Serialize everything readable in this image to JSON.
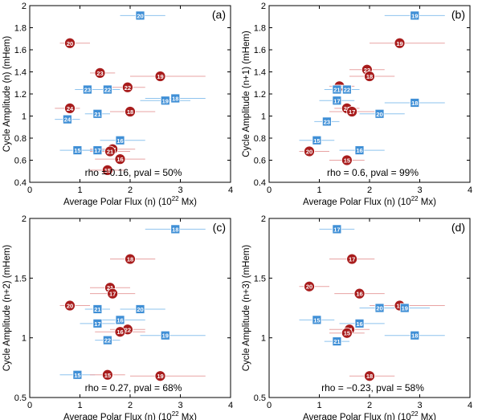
{
  "figure": {
    "marker_colors": {
      "blue": "#3f8fd6",
      "red": "#a81c1c",
      "blue_err": "#8ec3ee",
      "red_err": "#e8a3a3"
    }
  },
  "chart_data": [
    {
      "type": "scatter",
      "panel_label": "(a)",
      "xlabel": "Average Polar Flux (n) (10",
      "xlabel_sup": "22",
      "xlabel_tail": " Mx)",
      "ylabel": "Cycle Amplitude (n) (mHem)",
      "xlim": [
        0,
        4
      ],
      "ylim": [
        0.4,
        2.0
      ],
      "xticks": [
        0,
        1,
        2,
        3,
        4
      ],
      "xtick_labels": [
        "0",
        "1",
        "2",
        "3",
        "4"
      ],
      "yticks": [
        0.4,
        0.6,
        0.8,
        1.0,
        1.2,
        1.4,
        1.6,
        1.8,
        2.0
      ],
      "ytick_labels": [
        "0.4",
        "0.6",
        "0.8",
        "1",
        "1.2",
        "1.4",
        "1.6",
        "1.8",
        "2"
      ],
      "annotation": "rho = 0.16, pval = 50%",
      "points": [
        {
          "label": "20",
          "kind": "square",
          "x": 2.2,
          "y": 1.91,
          "xerr": [
            1.8,
            2.7
          ]
        },
        {
          "label": "20",
          "kind": "circle",
          "x": 0.8,
          "y": 1.66,
          "xerr": [
            0.6,
            1.2
          ]
        },
        {
          "label": "23",
          "kind": "circle",
          "x": 1.4,
          "y": 1.39,
          "xerr": [
            1.2,
            1.7
          ]
        },
        {
          "label": "19",
          "kind": "circle",
          "x": 2.6,
          "y": 1.36,
          "xerr": [
            2.0,
            3.5
          ]
        },
        {
          "label": "22",
          "kind": "circle",
          "x": 1.95,
          "y": 1.26,
          "xerr": [
            1.6,
            2.3
          ]
        },
        {
          "label": "23",
          "kind": "square",
          "x": 1.15,
          "y": 1.24,
          "xerr": [
            0.9,
            1.4
          ]
        },
        {
          "label": "22",
          "kind": "square",
          "x": 1.55,
          "y": 1.24,
          "xerr": [
            1.3,
            1.8
          ]
        },
        {
          "label": "18",
          "kind": "square",
          "x": 2.9,
          "y": 1.16,
          "xerr": [
            2.3,
            3.5
          ]
        },
        {
          "label": "19",
          "kind": "square",
          "x": 2.7,
          "y": 1.14,
          "xerr": [
            2.2,
            3.2
          ]
        },
        {
          "label": "24",
          "kind": "circle",
          "x": 0.8,
          "y": 1.07,
          "xerr": [
            0.5,
            1.0
          ]
        },
        {
          "label": "18",
          "kind": "circle",
          "x": 2.0,
          "y": 1.04,
          "xerr": [
            1.6,
            2.5
          ]
        },
        {
          "label": "21",
          "kind": "square",
          "x": 1.35,
          "y": 1.02,
          "xerr": [
            1.1,
            1.6
          ]
        },
        {
          "label": "24",
          "kind": "square",
          "x": 0.75,
          "y": 0.97,
          "xerr": [
            0.5,
            1.0
          ]
        },
        {
          "label": "16",
          "kind": "square",
          "x": 1.8,
          "y": 0.78,
          "xerr": [
            1.4,
            2.3
          ]
        },
        {
          "label": "15",
          "kind": "square",
          "x": 0.95,
          "y": 0.69,
          "xerr": [
            0.6,
            1.3
          ]
        },
        {
          "label": "17",
          "kind": "square",
          "x": 1.35,
          "y": 0.69,
          "xerr": [
            1.0,
            1.7
          ]
        },
        {
          "label": "17",
          "kind": "circle",
          "x": 1.65,
          "y": 0.7,
          "xerr": [
            1.2,
            2.1
          ]
        },
        {
          "label": "21",
          "kind": "circle",
          "x": 1.6,
          "y": 0.68,
          "xerr": [
            1.2,
            2.0
          ]
        },
        {
          "label": "16",
          "kind": "circle",
          "x": 1.8,
          "y": 0.61,
          "xerr": [
            1.3,
            2.3
          ]
        },
        {
          "label": "15",
          "kind": "circle",
          "x": 1.55,
          "y": 0.51,
          "xerr": [
            1.2,
            1.9
          ]
        }
      ]
    },
    {
      "type": "scatter",
      "panel_label": "(b)",
      "xlabel": "Average Polar Flux (n) (10",
      "xlabel_sup": "22",
      "xlabel_tail": " Mx)",
      "ylabel": "Cycle Amplitude (n+1) (mHem)",
      "xlim": [
        0,
        4
      ],
      "ylim": [
        0.4,
        2.0
      ],
      "xticks": [
        0,
        1,
        2,
        3,
        4
      ],
      "xtick_labels": [
        "0",
        "1",
        "2",
        "3",
        "4"
      ],
      "yticks": [
        0.4,
        0.6,
        0.8,
        1.0,
        1.2,
        1.4,
        1.6,
        1.8,
        2.0
      ],
      "ytick_labels": [
        "0.4",
        "0.6",
        "0.8",
        "1",
        "1.2",
        "1.4",
        "1.6",
        "1.8",
        "2"
      ],
      "annotation": "rho = 0.6, pval = 99%",
      "points": [
        {
          "label": "19",
          "kind": "square",
          "x": 2.9,
          "y": 1.91,
          "xerr": [
            2.3,
            3.5
          ]
        },
        {
          "label": "19",
          "kind": "circle",
          "x": 2.6,
          "y": 1.66,
          "xerr": [
            2.0,
            3.5
          ]
        },
        {
          "label": "22",
          "kind": "circle",
          "x": 1.95,
          "y": 1.42,
          "xerr": [
            1.6,
            2.3
          ]
        },
        {
          "label": "18",
          "kind": "circle",
          "x": 2.0,
          "y": 1.36,
          "xerr": [
            1.6,
            2.5
          ]
        },
        {
          "label": "23",
          "kind": "circle",
          "x": 1.4,
          "y": 1.27,
          "xerr": [
            1.2,
            1.7
          ]
        },
        {
          "label": "21",
          "kind": "square",
          "x": 1.35,
          "y": 1.24,
          "xerr": [
            1.1,
            1.6
          ]
        },
        {
          "label": "22",
          "kind": "square",
          "x": 1.55,
          "y": 1.24,
          "xerr": [
            1.3,
            1.8
          ]
        },
        {
          "label": "17",
          "kind": "square",
          "x": 1.35,
          "y": 1.14,
          "xerr": [
            1.0,
            1.7
          ]
        },
        {
          "label": "18",
          "kind": "square",
          "x": 2.9,
          "y": 1.12,
          "xerr": [
            2.3,
            3.5
          ]
        },
        {
          "label": "23",
          "kind": "circle",
          "x": 1.55,
          "y": 1.07,
          "xerr": [
            1.3,
            1.8
          ]
        },
        {
          "label": "17",
          "kind": "circle",
          "x": 1.65,
          "y": 1.04,
          "xerr": [
            1.2,
            2.1
          ]
        },
        {
          "label": "20",
          "kind": "square",
          "x": 2.2,
          "y": 1.02,
          "xerr": [
            1.8,
            2.7
          ]
        },
        {
          "label": "23",
          "kind": "square",
          "x": 1.15,
          "y": 0.95,
          "xerr": [
            0.9,
            1.4
          ]
        },
        {
          "label": "15",
          "kind": "square",
          "x": 0.95,
          "y": 0.78,
          "xerr": [
            0.6,
            1.3
          ]
        },
        {
          "label": "20",
          "kind": "circle",
          "x": 0.8,
          "y": 0.68,
          "xerr": [
            0.6,
            1.2
          ]
        },
        {
          "label": "16",
          "kind": "square",
          "x": 1.8,
          "y": 0.69,
          "xerr": [
            1.4,
            2.3
          ]
        },
        {
          "label": "15",
          "kind": "circle",
          "x": 1.55,
          "y": 0.6,
          "xerr": [
            1.2,
            1.9
          ]
        }
      ]
    },
    {
      "type": "scatter",
      "panel_label": "(c)",
      "xlabel": "Average Polar Flux (n) (10",
      "xlabel_sup": "22",
      "xlabel_tail": " Mx)",
      "ylabel": "Cycle Amplitude (n+2) (mHem)",
      "xlim": [
        0,
        4
      ],
      "ylim": [
        0.5,
        2.0
      ],
      "xticks": [
        0,
        1,
        2,
        3,
        4
      ],
      "xtick_labels": [
        "0",
        "1",
        "2",
        "3",
        "4"
      ],
      "yticks": [
        0.5,
        1.0,
        1.5,
        2.0
      ],
      "ytick_labels": [
        "0.5",
        "1",
        "1.5",
        "2"
      ],
      "annotation": "rho = 0.27, pval = 68%",
      "points": [
        {
          "label": "18",
          "kind": "square",
          "x": 2.9,
          "y": 1.91,
          "xerr": [
            2.3,
            3.5
          ]
        },
        {
          "label": "18",
          "kind": "circle",
          "x": 2.0,
          "y": 1.66,
          "xerr": [
            1.6,
            2.5
          ]
        },
        {
          "label": "21",
          "kind": "circle",
          "x": 1.6,
          "y": 1.42,
          "xerr": [
            1.2,
            2.0
          ]
        },
        {
          "label": "17",
          "kind": "circle",
          "x": 1.65,
          "y": 1.37,
          "xerr": [
            1.2,
            2.1
          ]
        },
        {
          "label": "20",
          "kind": "circle",
          "x": 0.8,
          "y": 1.27,
          "xerr": [
            0.6,
            1.2
          ]
        },
        {
          "label": "21",
          "kind": "square",
          "x": 1.35,
          "y": 1.24,
          "xerr": [
            1.1,
            1.6
          ]
        },
        {
          "label": "20",
          "kind": "square",
          "x": 2.2,
          "y": 1.24,
          "xerr": [
            1.8,
            2.7
          ]
        },
        {
          "label": "16",
          "kind": "square",
          "x": 1.8,
          "y": 1.15,
          "xerr": [
            1.4,
            2.3
          ]
        },
        {
          "label": "17",
          "kind": "square",
          "x": 1.35,
          "y": 1.12,
          "xerr": [
            1.0,
            1.7
          ]
        },
        {
          "label": "22",
          "kind": "circle",
          "x": 1.95,
          "y": 1.07,
          "xerr": [
            1.6,
            2.3
          ]
        },
        {
          "label": "16",
          "kind": "circle",
          "x": 1.8,
          "y": 1.05,
          "xerr": [
            1.3,
            2.3
          ]
        },
        {
          "label": "19",
          "kind": "square",
          "x": 2.7,
          "y": 1.02,
          "xerr": [
            2.2,
            3.5
          ]
        },
        {
          "label": "22",
          "kind": "square",
          "x": 1.55,
          "y": 0.98,
          "xerr": [
            1.3,
            1.8
          ]
        },
        {
          "label": "15",
          "kind": "square",
          "x": 0.95,
          "y": 0.69,
          "xerr": [
            0.6,
            1.3
          ]
        },
        {
          "label": "15",
          "kind": "circle",
          "x": 1.55,
          "y": 0.69,
          "xerr": [
            1.2,
            1.9
          ]
        },
        {
          "label": "19",
          "kind": "circle",
          "x": 2.6,
          "y": 0.68,
          "xerr": [
            2.0,
            3.5
          ]
        }
      ]
    },
    {
      "type": "scatter",
      "panel_label": "(d)",
      "xlabel": "Average Polar Flux (n) (10",
      "xlabel_sup": "22",
      "xlabel_tail": " Mx)",
      "ylabel": "Cycle Amplitude (n+3) (mHem)",
      "xlim": [
        0,
        4
      ],
      "ylim": [
        0.5,
        2.0
      ],
      "xticks": [
        0,
        1,
        2,
        3,
        4
      ],
      "xtick_labels": [
        "0",
        "1",
        "2",
        "3",
        "4"
      ],
      "yticks": [
        0.5,
        1.0,
        1.5,
        2.0
      ],
      "ytick_labels": [
        "0.5",
        "1",
        "1.5",
        "2"
      ],
      "annotation": "rho = −0.23, pval = 58%",
      "points": [
        {
          "label": "17",
          "kind": "square",
          "x": 1.35,
          "y": 1.91,
          "xerr": [
            1.0,
            1.7
          ]
        },
        {
          "label": "17",
          "kind": "circle",
          "x": 1.65,
          "y": 1.66,
          "xerr": [
            1.2,
            2.1
          ]
        },
        {
          "label": "20",
          "kind": "circle",
          "x": 0.8,
          "y": 1.43,
          "xerr": [
            0.6,
            1.2
          ]
        },
        {
          "label": "16",
          "kind": "circle",
          "x": 1.8,
          "y": 1.37,
          "xerr": [
            1.3,
            2.3
          ]
        },
        {
          "label": "19",
          "kind": "circle",
          "x": 2.6,
          "y": 1.27,
          "xerr": [
            2.0,
            3.5
          ]
        },
        {
          "label": "20",
          "kind": "square",
          "x": 2.2,
          "y": 1.25,
          "xerr": [
            1.8,
            2.7
          ]
        },
        {
          "label": "19",
          "kind": "square",
          "x": 2.7,
          "y": 1.25,
          "xerr": [
            2.2,
            3.2
          ]
        },
        {
          "label": "15",
          "kind": "square",
          "x": 0.95,
          "y": 1.15,
          "xerr": [
            0.6,
            1.3
          ]
        },
        {
          "label": "16",
          "kind": "square",
          "x": 1.8,
          "y": 1.12,
          "xerr": [
            1.4,
            2.3
          ]
        },
        {
          "label": "21",
          "kind": "circle",
          "x": 1.6,
          "y": 1.07,
          "xerr": [
            1.2,
            2.0
          ]
        },
        {
          "label": "15",
          "kind": "circle",
          "x": 1.55,
          "y": 1.04,
          "xerr": [
            1.2,
            1.9
          ]
        },
        {
          "label": "18",
          "kind": "square",
          "x": 2.9,
          "y": 1.02,
          "xerr": [
            2.3,
            3.5
          ]
        },
        {
          "label": "21",
          "kind": "square",
          "x": 1.35,
          "y": 0.97,
          "xerr": [
            1.1,
            1.6
          ]
        },
        {
          "label": "18",
          "kind": "circle",
          "x": 2.0,
          "y": 0.68,
          "xerr": [
            1.6,
            2.5
          ]
        }
      ]
    }
  ]
}
